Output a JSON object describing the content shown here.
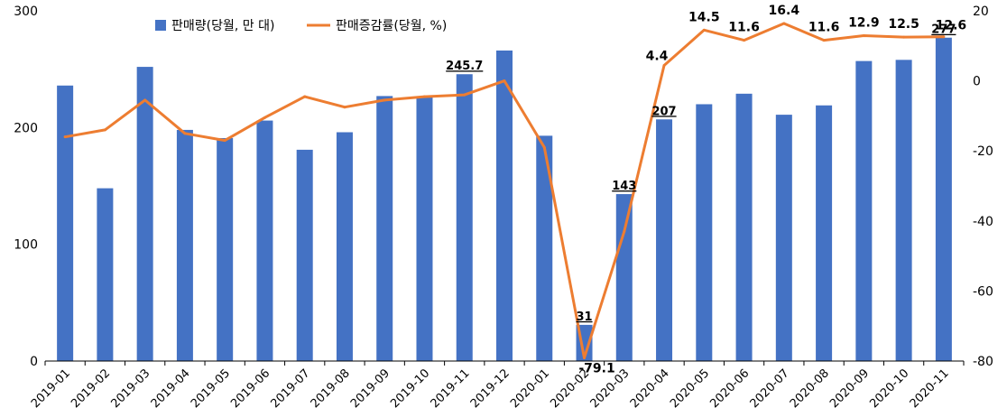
{
  "chart_data": {
    "type": "bar",
    "categories": [
      "2019-01",
      "2019-02",
      "2019-03",
      "2019-04",
      "2019-05",
      "2019-06",
      "2019-07",
      "2019-08",
      "2019-09",
      "2019-10",
      "2019-11",
      "2019-12",
      "2020-01",
      "2020-02",
      "2020-03",
      "2020-04",
      "2020-05",
      "2020-06",
      "2020-07",
      "2020-08",
      "2020-09",
      "2020-10",
      "2020-11"
    ],
    "series": [
      {
        "name": "판매량(당월, 만 대)",
        "kind": "bar",
        "axis": "left",
        "color": "#4472C4",
        "values": [
          236,
          148,
          252,
          198,
          191,
          206,
          181,
          196,
          227,
          226,
          245.7,
          266,
          193,
          31,
          143,
          207,
          220,
          229,
          211,
          219,
          257,
          258,
          277
        ],
        "labeled": [
          {
            "index": 10,
            "text": "245.7"
          },
          {
            "index": 13,
            "text": "31"
          },
          {
            "index": 14,
            "text": "143"
          },
          {
            "index": 15,
            "text": "207"
          },
          {
            "index": 22,
            "text": "277"
          }
        ]
      },
      {
        "name": "판매증감률(당월, %)",
        "kind": "line",
        "axis": "right",
        "color": "#ED7D31",
        "values": [
          -16,
          -14,
          -5.5,
          -15,
          -17,
          -10.5,
          -4.5,
          -7.5,
          -5.5,
          -4.5,
          -4,
          0,
          -19,
          -79.1,
          -43,
          4.4,
          14.5,
          11.6,
          16.4,
          11.6,
          12.9,
          12.5,
          12.6
        ],
        "labeled": [
          {
            "index": 13,
            "text": "-79.1"
          },
          {
            "index": 15,
            "text": "4.4"
          },
          {
            "index": 16,
            "text": "14.5"
          },
          {
            "index": 17,
            "text": "11.6"
          },
          {
            "index": 18,
            "text": "16.4"
          },
          {
            "index": 19,
            "text": "11.6"
          },
          {
            "index": 20,
            "text": "12.9"
          },
          {
            "index": 21,
            "text": "12.5"
          },
          {
            "index": 22,
            "text": "12.6"
          }
        ]
      }
    ],
    "y_left": {
      "ylim": [
        0,
        300
      ],
      "ticks": [
        "0",
        "100",
        "200",
        "300"
      ]
    },
    "y_right": {
      "ylim": [
        -80,
        20
      ],
      "ticks": [
        "-80",
        "-60",
        "-40",
        "-20",
        "0",
        "20"
      ]
    },
    "grid": false,
    "legend_position": "top"
  }
}
